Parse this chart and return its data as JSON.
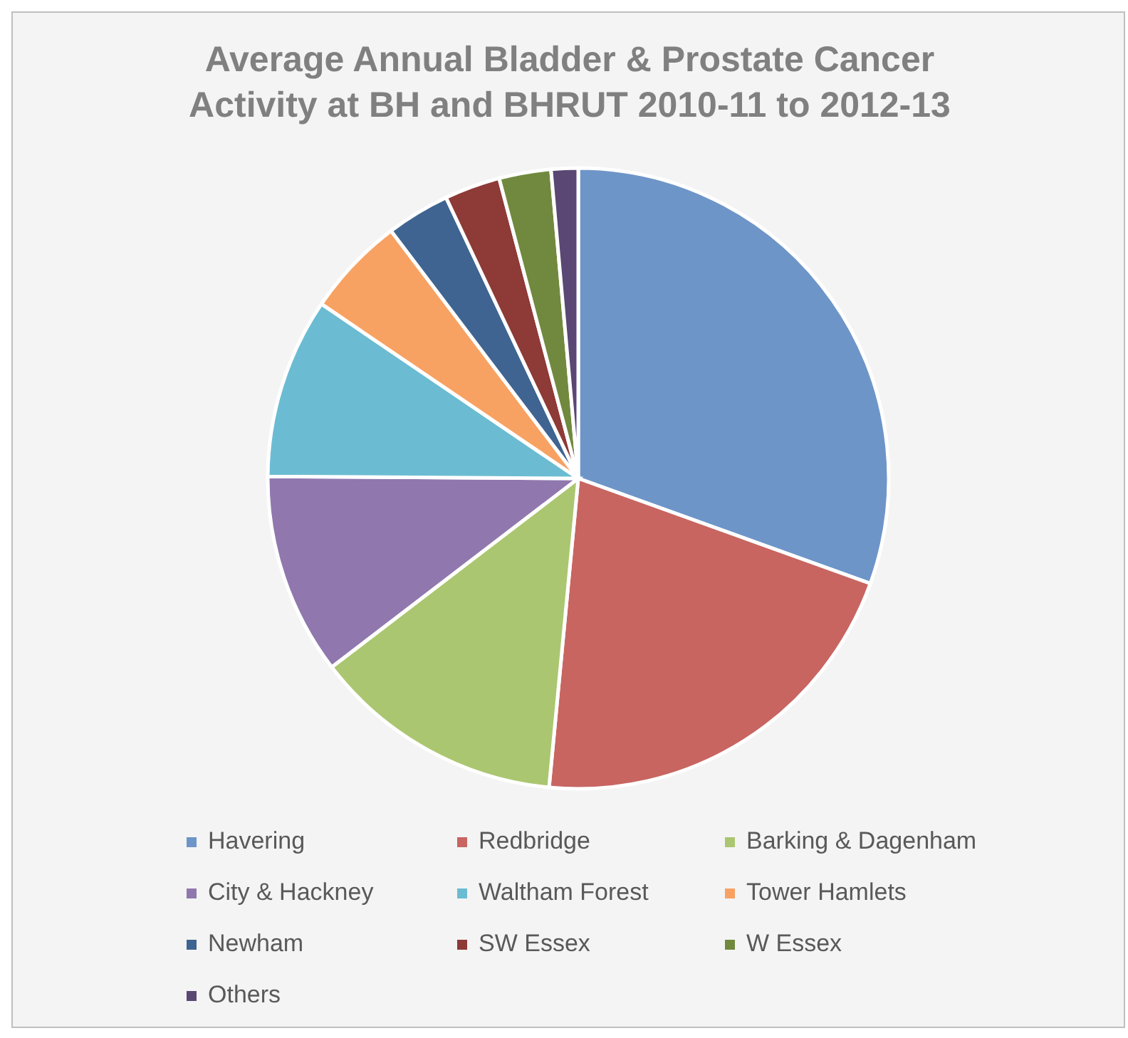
{
  "chart_data": {
    "type": "pie",
    "title": "Average Annual Bladder & Prostate Cancer Activity at BH and BHRUT 2010-11 to 2012-13",
    "categories": [
      "Havering",
      "Redbridge",
      "Barking & Dagenham",
      "City & Hackney",
      "Waltham Forest",
      "Tower Hamlets",
      "Newham",
      "SW Essex",
      "W Essex",
      "Others"
    ],
    "values": [
      30.5,
      21.0,
      13.1,
      10.5,
      9.4,
      5.2,
      3.3,
      2.9,
      2.7,
      1.4
    ],
    "colors": [
      "#6e95c8",
      "#c86561",
      "#abc670",
      "#9078ae",
      "#6bbcd2",
      "#f7a263",
      "#3f6491",
      "#8e3a37",
      "#71893e",
      "#5a4773"
    ],
    "legend": "bottom"
  }
}
